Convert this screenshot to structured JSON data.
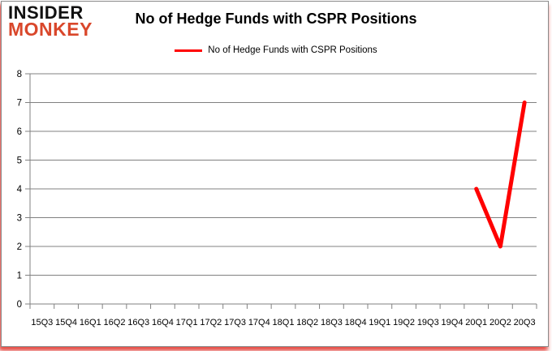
{
  "logo": {
    "line1": "INSIDER",
    "line2": "MONKEY",
    "line1_color": "#111111",
    "line2_color": "#d9472b"
  },
  "header": {
    "title": "No of Hedge Funds with CSPR Positions"
  },
  "legend": {
    "label": "No of Hedge Funds with CSPR Positions",
    "color": "#ff0000",
    "position": "top"
  },
  "colors": {
    "series_red": "#ff0000",
    "grid_gray": "#808080",
    "text_black": "#000000",
    "frame_glow_red": "#e0281e"
  },
  "chart_data": {
    "type": "line",
    "title": "No of Hedge Funds with CSPR Positions",
    "categories": [
      "15Q3",
      "15Q4",
      "16Q1",
      "16Q2",
      "16Q3",
      "16Q4",
      "17Q1",
      "17Q2",
      "17Q3",
      "17Q4",
      "18Q1",
      "18Q2",
      "18Q3",
      "18Q4",
      "19Q1",
      "19Q2",
      "19Q3",
      "19Q4",
      "20Q1",
      "20Q2",
      "20Q3"
    ],
    "series": [
      {
        "name": "No of Hedge Funds with CSPR Positions",
        "color": "#ff0000",
        "values": [
          null,
          null,
          null,
          null,
          null,
          null,
          null,
          null,
          null,
          null,
          null,
          null,
          null,
          null,
          null,
          null,
          null,
          null,
          4,
          2,
          7
        ]
      }
    ],
    "xlabel": "",
    "ylabel": "",
    "ylim": [
      0,
      8
    ],
    "ytick_interval": 1,
    "yticks": [
      0,
      1,
      2,
      3,
      4,
      5,
      6,
      7,
      8
    ],
    "grid": "horizontal",
    "legend_position": "top"
  }
}
